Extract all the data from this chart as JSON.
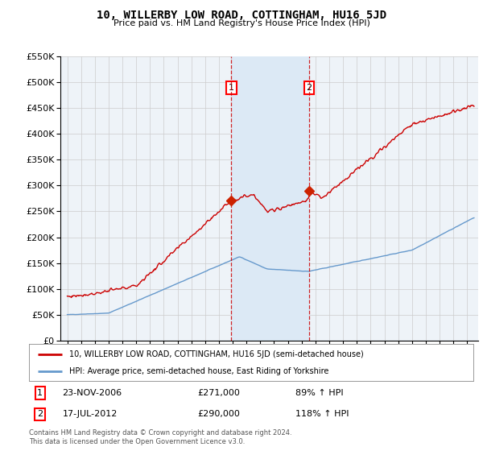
{
  "title": "10, WILLERBY LOW ROAD, COTTINGHAM, HU16 5JD",
  "subtitle": "Price paid vs. HM Land Registry's House Price Index (HPI)",
  "legend_line1": "10, WILLERBY LOW ROAD, COTTINGHAM, HU16 5JD (semi-detached house)",
  "legend_line2": "HPI: Average price, semi-detached house, East Riding of Yorkshire",
  "footer": "Contains HM Land Registry data © Crown copyright and database right 2024.\nThis data is licensed under the Open Government Licence v3.0.",
  "sale1_date_label": "23-NOV-2006",
  "sale1_price_label": "£271,000",
  "sale1_hpi_label": "89% ↑ HPI",
  "sale2_date_label": "17-JUL-2012",
  "sale2_price_label": "£290,000",
  "sale2_hpi_label": "118% ↑ HPI",
  "sale1_x": 2006.9,
  "sale1_y": 271000,
  "sale2_x": 2012.54,
  "sale2_y": 290000,
  "ylim": [
    0,
    550000
  ],
  "xlim_start": 1994.5,
  "xlim_end": 2024.8,
  "red_color": "#cc0000",
  "blue_color": "#6699cc",
  "bg_color": "#eef3f8",
  "grid_color": "#cccccc",
  "marker_fill": "#cc2200",
  "dashed_color": "#cc0000",
  "span_color": "#dce9f5"
}
